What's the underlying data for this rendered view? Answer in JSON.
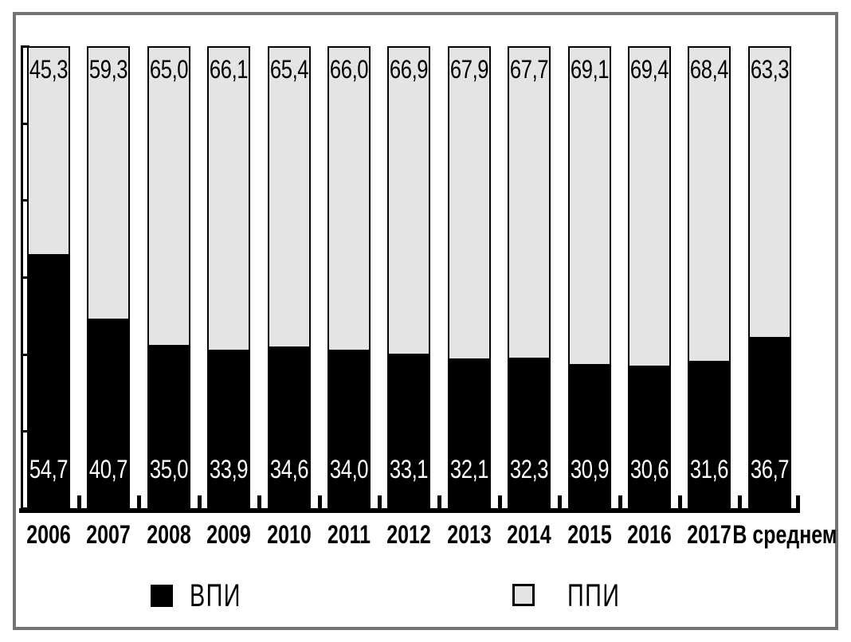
{
  "chart_data": {
    "type": "bar",
    "stacked": true,
    "orientation": "vertical",
    "title": "",
    "xlabel": "",
    "ylabel": "",
    "ylim": [
      0,
      100
    ],
    "grid": false,
    "legend_position": "bottom",
    "categories": [
      "2006",
      "2007",
      "2008",
      "2009",
      "2010",
      "2011",
      "2012",
      "2013",
      "2014",
      "2015",
      "2016",
      "2017",
      "В среднем"
    ],
    "series": [
      {
        "name": "ВПИ",
        "color": "#000000",
        "label_color": "#ffffff",
        "position": "bottom",
        "values": [
          54.7,
          40.7,
          35.0,
          33.9,
          34.6,
          34.0,
          33.1,
          32.1,
          32.3,
          30.9,
          30.6,
          31.6,
          36.7
        ],
        "labels": [
          "54,7",
          "40,7",
          "35,0",
          "33,9",
          "34,6",
          "34,0",
          "33,1",
          "32,1",
          "32,3",
          "30,9",
          "30,6",
          "31,6",
          "36,7"
        ]
      },
      {
        "name": "ППИ",
        "color": "#e4e4e4",
        "label_color": "#000000",
        "position": "top",
        "values": [
          45.3,
          59.3,
          65.0,
          66.1,
          65.4,
          66.0,
          66.9,
          67.9,
          67.7,
          69.1,
          69.4,
          68.4,
          63.3
        ],
        "labels": [
          "45,3",
          "59,3",
          "65,0",
          "66,1",
          "65,4",
          "66,0",
          "66,9",
          "67,9",
          "67,7",
          "69,1",
          "69,4",
          "68,4",
          "63,3"
        ]
      }
    ]
  },
  "style": {
    "frame_color": "#737373",
    "axis_color": "#000000",
    "background": "#ffffff"
  }
}
